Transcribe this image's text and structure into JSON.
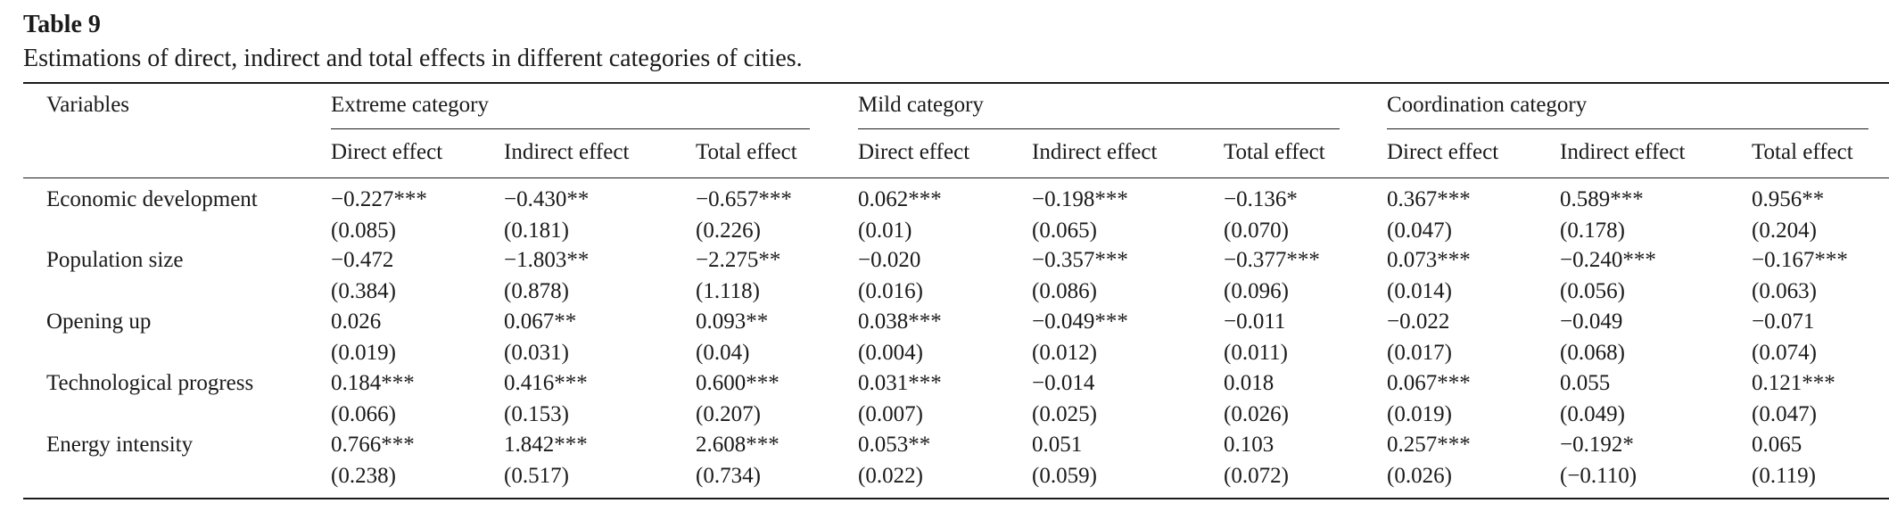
{
  "table": {
    "label": "Table 9",
    "caption": "Estimations of direct, indirect and total effects in different categories of cities.",
    "stub_header": "Variables",
    "groups": [
      "Extreme category",
      "Mild category",
      "Coordination category"
    ],
    "subheaders": [
      "Direct effect",
      "Indirect effect",
      "Total effect",
      "Direct effect",
      "Indirect effect",
      "Total effect",
      "Direct effect",
      "Indirect effect",
      "Total effect"
    ],
    "rows": [
      {
        "variable": "Economic development",
        "values": [
          "−0.227***",
          "−0.430**",
          "−0.657***",
          "0.062***",
          "−0.198***",
          "−0.136*",
          "0.367***",
          "0.589***",
          "0.956**"
        ],
        "se": [
          "(0.085)",
          "(0.181)",
          "(0.226)",
          "(0.01)",
          "(0.065)",
          "(0.070)",
          "(0.047)",
          "(0.178)",
          "(0.204)"
        ]
      },
      {
        "variable": "Population size",
        "values": [
          "−0.472",
          "−1.803**",
          "−2.275**",
          "−0.020",
          "−0.357***",
          "−0.377***",
          "0.073***",
          "−0.240***",
          "−0.167***"
        ],
        "se": [
          "(0.384)",
          "(0.878)",
          "(1.118)",
          "(0.016)",
          "(0.086)",
          "(0.096)",
          "(0.014)",
          "(0.056)",
          "(0.063)"
        ]
      },
      {
        "variable": "Opening up",
        "values": [
          "0.026",
          "0.067**",
          "0.093**",
          "0.038***",
          "−0.049***",
          "−0.011",
          "−0.022",
          "−0.049",
          "−0.071"
        ],
        "se": [
          "(0.019)",
          "(0.031)",
          "(0.04)",
          "(0.004)",
          "(0.012)",
          "(0.011)",
          "(0.017)",
          "(0.068)",
          "(0.074)"
        ]
      },
      {
        "variable": "Technological progress",
        "values": [
          "0.184***",
          "0.416***",
          "0.600***",
          "0.031***",
          "−0.014",
          "0.018",
          "0.067***",
          "0.055",
          "0.121***"
        ],
        "se": [
          "(0.066)",
          "(0.153)",
          "(0.207)",
          "(0.007)",
          "(0.025)",
          "(0.026)",
          "(0.019)",
          "(0.049)",
          "(0.047)"
        ]
      },
      {
        "variable": "Energy intensity",
        "values": [
          "0.766***",
          "1.842***",
          "2.608***",
          "0.053**",
          "0.051",
          "0.103",
          "0.257***",
          "−0.192*",
          "0.065"
        ],
        "se": [
          "(0.238)",
          "(0.517)",
          "(0.734)",
          "(0.022)",
          "(0.059)",
          "(0.072)",
          "(0.026)",
          "(−0.110)",
          "(0.119)"
        ]
      }
    ]
  }
}
